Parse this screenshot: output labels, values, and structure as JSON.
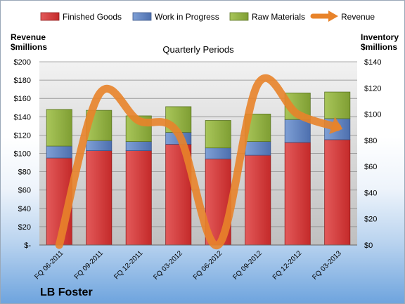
{
  "chart_data": {
    "type": "bar",
    "stacked": true,
    "title": "Quarterly Periods",
    "categories": [
      "FQ 06-2011",
      "FQ 09-2011",
      "FQ 12-2011",
      "FQ 03-2012",
      "FQ 06-2012",
      "FQ 09-2012",
      "FQ 12-2012",
      "FQ 03-2013"
    ],
    "series": [
      {
        "name": "Finished Goods",
        "color": "#d23a3a",
        "axis": "left",
        "values": [
          95,
          103,
          103,
          110,
          94,
          98,
          112,
          115
        ]
      },
      {
        "name": "Work in Progress",
        "color": "#5b7fbe",
        "axis": "left",
        "values": [
          13,
          11,
          10,
          13,
          12,
          15,
          25,
          23
        ]
      },
      {
        "name": "Raw Materials",
        "color": "#8faf3a",
        "axis": "left",
        "values": [
          40,
          33,
          28,
          28,
          30,
          30,
          29,
          29
        ]
      }
    ],
    "line_series": {
      "name": "Revenue",
      "color": "#e8832a",
      "axis": "right",
      "values": [
        0,
        115,
        95,
        85,
        0,
        123,
        100,
        90
      ]
    },
    "ylabel_left": "Revenue\n$millions",
    "ylabel_right": "Inventory\n$millions",
    "ylim_left": [
      0,
      200
    ],
    "ylim_right": [
      0,
      140
    ],
    "yticks_left": [
      "$-",
      "$20",
      "$40",
      "$60",
      "$80",
      "$100",
      "$120",
      "$140",
      "$160",
      "$180",
      "$200"
    ],
    "yticks_right": [
      "$0",
      "$20",
      "$40",
      "$60",
      "$80",
      "$100",
      "$120",
      "$140"
    ],
    "grid": true,
    "legend_position": "top"
  },
  "left_axis_title_line1": "Revenue",
  "left_axis_title_line2": "$millions",
  "right_axis_title_line1": "Inventory",
  "right_axis_title_line2": "$millions",
  "company": "LB Foster"
}
